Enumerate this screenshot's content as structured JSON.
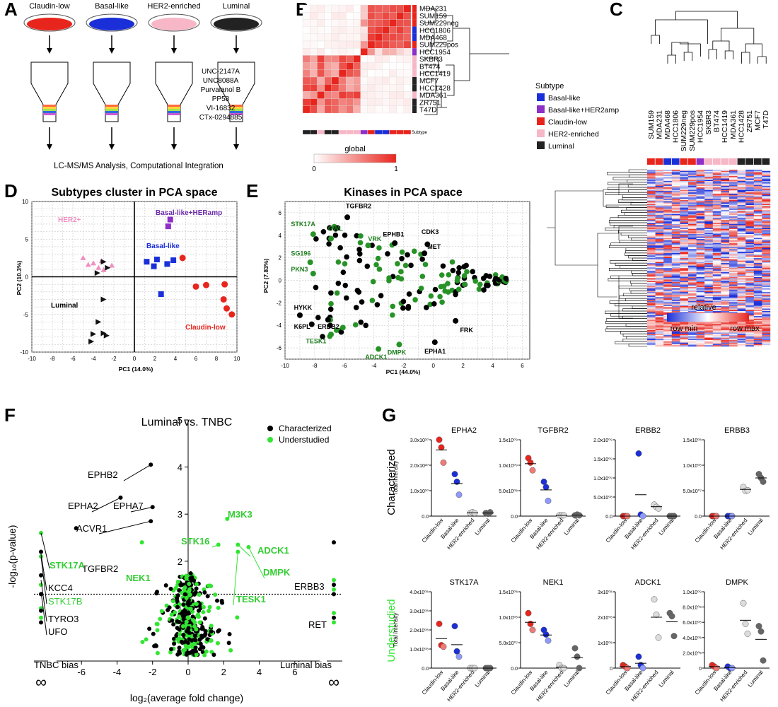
{
  "panel_labels": {
    "A": "A",
    "B": "B",
    "C": "C",
    "D": "D",
    "E": "E",
    "F": "F",
    "G": "G"
  },
  "colors": {
    "claudin_low": "#e8251d",
    "basal_like": "#1a2fd8",
    "her2": "#f7b7c6",
    "luminal": "#222222",
    "her2amp": "#8e2fc7",
    "green": "#33e533",
    "dark_green": "#1e7d1e"
  },
  "panelA": {
    "subtypes": [
      "Claudin-low",
      "Basal-like",
      "HER2-enriched",
      "Luminal"
    ],
    "compounds": [
      "UNC-2147A",
      "UNC8088A",
      "Purvalanol B",
      "PP58",
      "VI-16832",
      "CTx-0294885"
    ],
    "footer": "LC-MS/MS Analysis, Computational Integration"
  },
  "panelB": {
    "rows": [
      "MDA231",
      "SUM159",
      "SUM229neg",
      "HCC1806",
      "MDA468",
      "SUM229pos",
      "HCC1954",
      "SKBR3",
      "BT474",
      "HCC1419",
      "MCF7",
      "HCC1428",
      "MDA361",
      "ZR751",
      "T47D"
    ],
    "row_subtypes": [
      "claudin_low",
      "claudin_low",
      "claudin_low",
      "basal_like",
      "basal_like",
      "claudin_low",
      "her2amp",
      "her2",
      "her2",
      "her2",
      "luminal",
      "luminal",
      "her2",
      "luminal",
      "luminal"
    ],
    "subtype_label": "Subtype",
    "scale_title": "global",
    "scale_min": "0",
    "scale_max": "1"
  },
  "panelC": {
    "legend_title": "Subtype",
    "legend": [
      {
        "label": "Basal-like",
        "color": "#1a2fd8"
      },
      {
        "label": "Basal-like+HER2amp",
        "color": "#8e2fc7"
      },
      {
        "label": "Claudin-low",
        "color": "#e8251d"
      },
      {
        "label": "HER2-enriched",
        "color": "#f7b7c6"
      },
      {
        "label": "Luminal",
        "color": "#222222"
      }
    ],
    "columns": [
      "SUM159",
      "MDA231",
      "MDA468",
      "HCC1806",
      "SUM229neg",
      "SUM229pos",
      "HCC1954",
      "SKBR3",
      "BT474",
      "HCC1419",
      "MDA361",
      "HCC1428",
      "ZR751",
      "MCF7",
      "T47D"
    ],
    "column_subtypes": [
      "claudin_low",
      "claudin_low",
      "basal_like",
      "basal_like",
      "claudin_low",
      "claudin_low",
      "her2amp",
      "her2",
      "her2",
      "her2",
      "her2",
      "luminal",
      "luminal",
      "luminal",
      "luminal"
    ],
    "scale_title": "relative",
    "scale_min": "row min",
    "scale_max": "row max"
  },
  "panelD": {
    "title": "Subtypes cluster in PCA space",
    "xlabel": "PC1 (14.0%)",
    "ylabel": "PC2 (10.3%)",
    "labels": {
      "her2": "HER2+",
      "her2amp": "Basal-like+HERamp",
      "basal": "Basal-like",
      "luminal": "Luminal",
      "claudin": "Claudin-low"
    },
    "xticks": [
      "-10",
      "-8",
      "-6",
      "-4",
      "-2",
      "0",
      "2",
      "4",
      "6",
      "8",
      "10"
    ],
    "yticks": [
      "10",
      "5",
      "0",
      "-5",
      "-10"
    ]
  },
  "panelE": {
    "title": "Kinases in PCA space",
    "xlabel": "PC1 (44.0%)",
    "ylabel": "PC2 (7.83%)",
    "xticks": [
      "-10",
      "-8",
      "-6",
      "-4",
      "-2",
      "0",
      "2",
      "4",
      "6"
    ],
    "yticks": [
      "6",
      "4",
      "2",
      "0",
      "-2",
      "-4",
      "-6"
    ],
    "black_labels": [
      "TGFBR2",
      "EPHB1",
      "CDK3",
      "MET",
      "HYKK",
      "K6PL",
      "ERBB2",
      "FRK",
      "EPHA1"
    ],
    "green_labels": [
      "STK17A",
      "GWL",
      "VRK",
      "SG196",
      "PKN3",
      "TESK1",
      "DMPK",
      "ADCK1"
    ]
  },
  "panelF": {
    "title": "Luminal vs. TNBC",
    "xlabel": "log₂(average fold change)",
    "ylabel": "-log₁₀(p-value)",
    "legend": [
      "Characterized",
      "Understudied"
    ],
    "xticks": [
      "-6",
      "-4",
      "-2",
      "0",
      "2",
      "4",
      "6"
    ],
    "yticks": [
      "1",
      "2",
      "3",
      "4",
      "5"
    ],
    "inf": "∞",
    "left_bias": "TNBC bias",
    "right_bias": "Luminal bias",
    "black_labels": [
      "EPHB2",
      "EPHA2",
      "EPHA7",
      "ACVR1",
      "TGFBR2",
      "KCC4",
      "TYRO3",
      "UFO",
      "ERBB3",
      "RET"
    ],
    "green_labels": [
      "STK17A",
      "STK17B",
      "NEK1",
      "STK16",
      "M3K3",
      "ADCK1",
      "DMPK",
      "TESK1"
    ]
  },
  "panelG": {
    "row_labels": [
      "Characterized",
      "Understudied"
    ],
    "ylabel": "Total intensity",
    "categories": [
      "Claudin-low",
      "Basal-like",
      "HER2-enriched",
      "Luminal"
    ],
    "plots": [
      {
        "title": "EPHA2",
        "yticks": [
          "3.0x10¹⁰",
          "2.0x10¹⁰",
          "1.0x10¹⁰",
          "0.0"
        ]
      },
      {
        "title": "TGFBR2",
        "yticks": [
          "1.5x10⁰⁹",
          "1.0x10⁰⁹",
          "5.0x10⁰⁸",
          "0.0"
        ]
      },
      {
        "title": "ERBB2",
        "yticks": [
          "2.0x10⁰⁹",
          "1.5x10⁰⁹",
          "1.0x10⁰⁹",
          "5.0x10⁰⁸",
          "0.0"
        ]
      },
      {
        "title": "ERBB3",
        "yticks": [
          "1.5x10⁰⁸",
          "1.0x10⁰⁸",
          "5.0x10⁰⁷",
          "0.0"
        ]
      },
      {
        "title": "STK17A",
        "yticks": [
          "4.0x10⁰⁸",
          "3.0x10⁰⁸",
          "2.0x10⁰⁸",
          "1.0x10⁰⁸",
          "0.0"
        ]
      },
      {
        "title": "NEK1",
        "yticks": [
          "1.5x10⁰⁸",
          "1.0x10⁰⁸",
          "5.0x10⁰⁷",
          "0.0"
        ]
      },
      {
        "title": "ADCK1",
        "yticks": [
          "3x10⁰⁸",
          "2x10⁰⁸",
          "1x10⁰⁸",
          "0"
        ]
      },
      {
        "title": "DMPK",
        "yticks": [
          "1.0x10⁰⁹",
          "8.0x10⁰⁸",
          "6.0x10⁰⁸",
          "4.0x10⁰⁸",
          "2.0x10⁰⁸",
          "0"
        ]
      }
    ]
  }
}
